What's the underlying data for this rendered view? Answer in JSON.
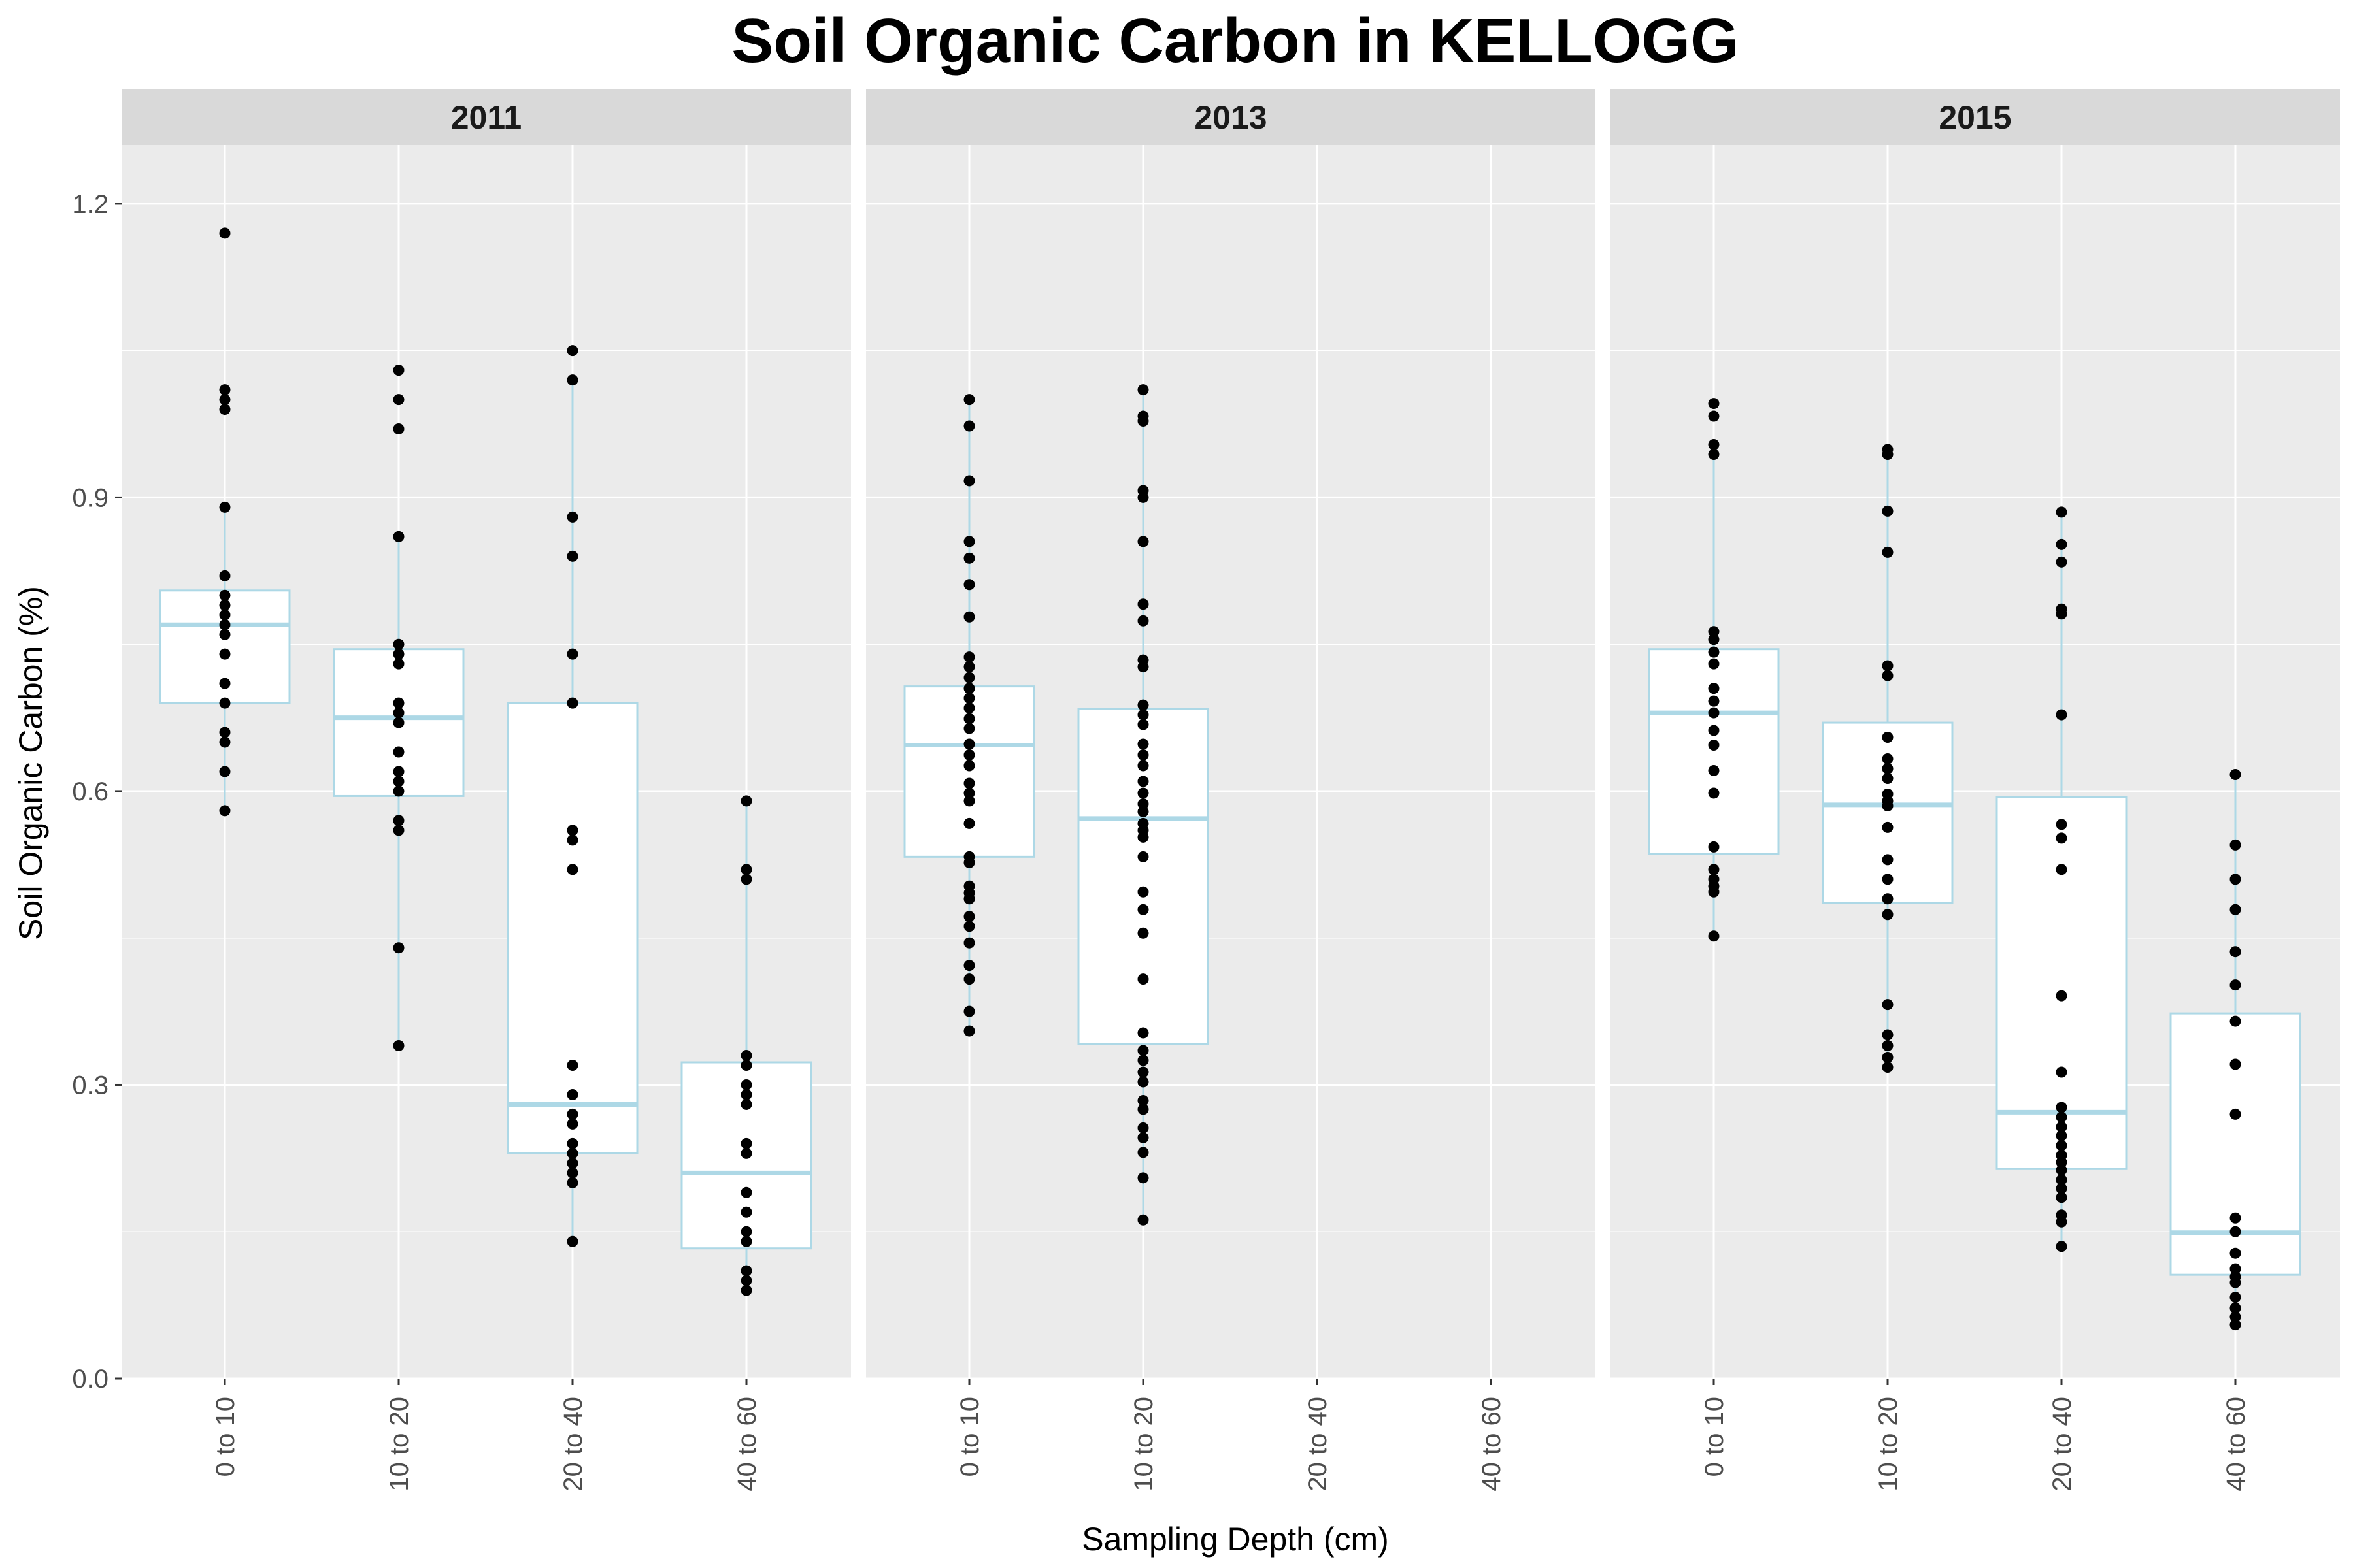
{
  "chart_data": {
    "type": "boxplot",
    "title": "Soil Organic Carbon in KELLOGG",
    "xlabel": "Sampling Depth (cm)",
    "ylabel": "Soil Organic Carbon (%)",
    "ylim": [
      0,
      1.26
    ],
    "yticks": [
      0.0,
      0.3,
      0.6,
      0.9,
      1.2
    ],
    "ytick_labels": [
      "0.0",
      "0.3",
      "0.6",
      "0.9",
      "1.2"
    ],
    "categories": [
      "0 to 10",
      "10 to 20",
      "20 to 40",
      "40 to 60"
    ],
    "grid": true,
    "colors": {
      "panel_bg": "#ebebeb",
      "strip_bg": "#d9d9d9",
      "grid": "#ffffff",
      "box_outline": "#add8e6",
      "box_fill": "#ffffff",
      "point": "#000000"
    },
    "panels": [
      {
        "facet": "2011",
        "groups": [
          {
            "category": "0 to 10",
            "box": {
              "min": 0.58,
              "q1": 0.69,
              "median": 0.77,
              "q3": 0.805,
              "max": 0.89
            },
            "points": [
              1.17,
              1.01,
              1.0,
              0.99,
              0.89,
              0.82,
              0.8,
              0.79,
              0.78,
              0.77,
              0.76,
              0.74,
              0.71,
              0.69,
              0.66,
              0.65,
              0.62,
              0.58
            ]
          },
          {
            "category": "10 to 20",
            "box": {
              "min": 0.34,
              "q1": 0.595,
              "median": 0.675,
              "q3": 0.745,
              "max": 0.86
            },
            "points": [
              1.03,
              1.0,
              0.97,
              0.86,
              0.75,
              0.74,
              0.73,
              0.69,
              0.68,
              0.67,
              0.64,
              0.62,
              0.61,
              0.6,
              0.57,
              0.56,
              0.44,
              0.34
            ]
          },
          {
            "category": "20 to 40",
            "box": {
              "min": 0.14,
              "q1": 0.23,
              "median": 0.28,
              "q3": 0.69,
              "max": 1.02
            },
            "points": [
              1.05,
              1.02,
              0.88,
              0.84,
              0.74,
              0.69,
              0.56,
              0.55,
              0.52,
              0.32,
              0.29,
              0.27,
              0.26,
              0.24,
              0.23,
              0.22,
              0.21,
              0.2,
              0.14
            ]
          },
          {
            "category": "40 to 60",
            "box": {
              "min": 0.09,
              "q1": 0.133,
              "median": 0.21,
              "q3": 0.323,
              "max": 0.59
            },
            "points": [
              0.59,
              0.52,
              0.51,
              0.33,
              0.32,
              0.3,
              0.29,
              0.28,
              0.24,
              0.23,
              0.19,
              0.17,
              0.15,
              0.14,
              0.11,
              0.1,
              0.09
            ]
          }
        ]
      },
      {
        "facet": "2013",
        "groups": [
          {
            "category": "0 to 10",
            "box": {
              "min": 0.355,
              "q1": 0.533,
              "median": 0.647,
              "q3": 0.707,
              "max": 1.0
            },
            "points": [
              1.0,
              0.973,
              0.917,
              0.855,
              0.838,
              0.811,
              0.778,
              0.737,
              0.727,
              0.716,
              0.705,
              0.695,
              0.685,
              0.674,
              0.664,
              0.648,
              0.637,
              0.626,
              0.608,
              0.598,
              0.59,
              0.567,
              0.533,
              0.527,
              0.503,
              0.496,
              0.49,
              0.472,
              0.462,
              0.445,
              0.422,
              0.408,
              0.375,
              0.355
            ]
          },
          {
            "category": "10 to 20",
            "box": {
              "min": 0.162,
              "q1": 0.342,
              "median": 0.572,
              "q3": 0.684,
              "max": 1.01
            },
            "points": [
              1.01,
              0.983,
              0.978,
              0.907,
              0.9,
              0.855,
              0.791,
              0.774,
              0.734,
              0.727,
              0.688,
              0.678,
              0.668,
              0.648,
              0.637,
              0.626,
              0.61,
              0.598,
              0.587,
              0.579,
              0.567,
              0.56,
              0.553,
              0.533,
              0.497,
              0.479,
              0.455,
              0.408,
              0.353,
              0.335,
              0.325,
              0.313,
              0.303,
              0.284,
              0.275,
              0.256,
              0.246,
              0.231,
              0.205,
              0.162
            ]
          }
        ]
      },
      {
        "facet": "2015",
        "groups": [
          {
            "category": "0 to 10",
            "box": {
              "min": 0.452,
              "q1": 0.536,
              "median": 0.68,
              "q3": 0.745,
              "max": 0.955
            },
            "points": [
              0.996,
              0.983,
              0.954,
              0.944,
              0.763,
              0.755,
              0.742,
              0.73,
              0.705,
              0.692,
              0.68,
              0.662,
              0.647,
              0.621,
              0.598,
              0.543,
              0.52,
              0.51,
              0.503,
              0.497,
              0.452
            ]
          },
          {
            "category": "10 to 20",
            "box": {
              "min": 0.318,
              "q1": 0.486,
              "median": 0.586,
              "q3": 0.67,
              "max": 0.945
            },
            "points": [
              0.949,
              0.944,
              0.886,
              0.844,
              0.728,
              0.718,
              0.655,
              0.633,
              0.623,
              0.613,
              0.597,
              0.59,
              0.585,
              0.563,
              0.53,
              0.51,
              0.49,
              0.474,
              0.382,
              0.351,
              0.34,
              0.328,
              0.318
            ]
          },
          {
            "category": "20 to 40",
            "box": {
              "min": 0.135,
              "q1": 0.214,
              "median": 0.272,
              "q3": 0.594,
              "max": 0.885
            },
            "points": [
              0.885,
              0.852,
              0.834,
              0.786,
              0.781,
              0.678,
              0.566,
              0.552,
              0.52,
              0.391,
              0.313,
              0.277,
              0.267,
              0.257,
              0.248,
              0.238,
              0.228,
              0.221,
              0.213,
              0.203,
              0.194,
              0.185,
              0.167,
              0.16,
              0.135
            ]
          },
          {
            "category": "40 to 60",
            "box": {
              "min": 0.055,
              "q1": 0.106,
              "median": 0.149,
              "q3": 0.373,
              "max": 0.617
            },
            "points": [
              0.617,
              0.545,
              0.51,
              0.479,
              0.436,
              0.402,
              0.365,
              0.321,
              0.27,
              0.164,
              0.15,
              0.128,
              0.112,
              0.104,
              0.098,
              0.083,
              0.072,
              0.063,
              0.055
            ]
          }
        ]
      }
    ]
  }
}
